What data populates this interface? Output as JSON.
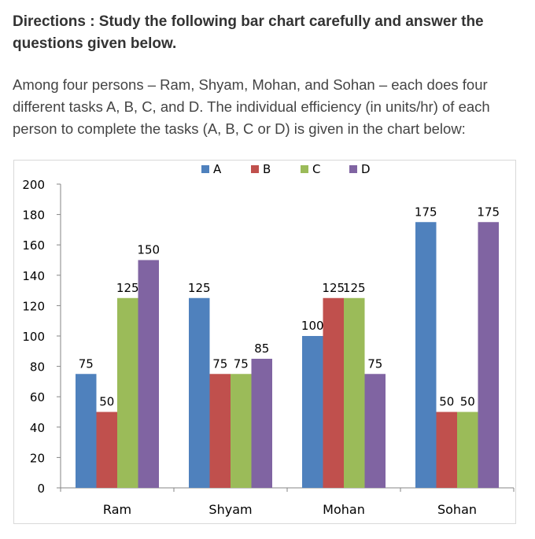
{
  "directions": "Directions : Study the following bar chart carefully and answer the questions given below.",
  "intro": "Among four persons – Ram, Shyam, Mohan, and Sohan – each does four different tasks A, B, C, and D. The individual efficiency (in units/hr) of each person to complete the tasks (A, B, C or D) is given in the chart below:",
  "chart_data": {
    "type": "bar",
    "categories": [
      "Ram",
      "Shyam",
      "Mohan",
      "Sohan"
    ],
    "series": [
      {
        "name": "A",
        "color": "#4f81bd",
        "values": [
          75,
          125,
          100,
          175
        ]
      },
      {
        "name": "B",
        "color": "#c0504d",
        "values": [
          50,
          75,
          125,
          50
        ]
      },
      {
        "name": "C",
        "color": "#9bbb59",
        "values": [
          125,
          75,
          125,
          50
        ]
      },
      {
        "name": "D",
        "color": "#8064a2",
        "values": [
          150,
          85,
          75,
          175
        ]
      }
    ],
    "yticks": [
      "0",
      "20",
      "40",
      "60",
      "80",
      "100",
      "120",
      "140",
      "160",
      "180",
      "200"
    ],
    "ylim": [
      0,
      200
    ],
    "legend_position": "top",
    "grid": false
  }
}
